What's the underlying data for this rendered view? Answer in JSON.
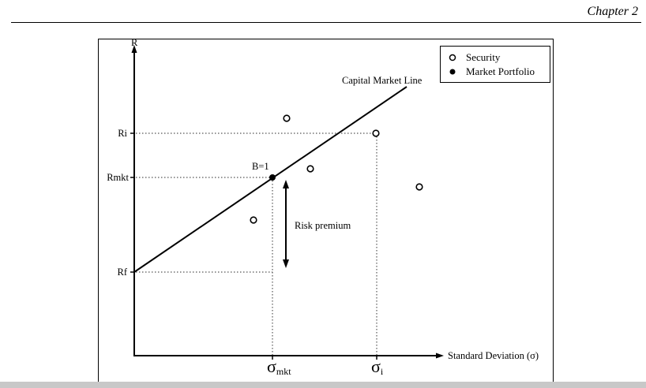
{
  "header": {
    "chapter": "Chapter 2"
  },
  "figure": {
    "y_axis_label": "R",
    "x_axis_label": "Standard Deviation (σ)",
    "y_ticks": {
      "ri": "Ri",
      "rmkt": "Rmkt",
      "rf": "Rf"
    },
    "x_ticks": {
      "sigma_mkt": {
        "symbol": "σ",
        "sub": "mkt"
      },
      "sigma_i": {
        "symbol": "σ",
        "sub": "i"
      }
    },
    "line_label": "Capital Market Line",
    "market_label": "B=1",
    "premium_label": "Risk premium",
    "legend": {
      "security": "Security",
      "market_portfolio": "Market Portfolio"
    }
  },
  "colors": {
    "ink": "#000000",
    "dotted": "#555555",
    "footer_bar": "#c8c8c8"
  }
}
